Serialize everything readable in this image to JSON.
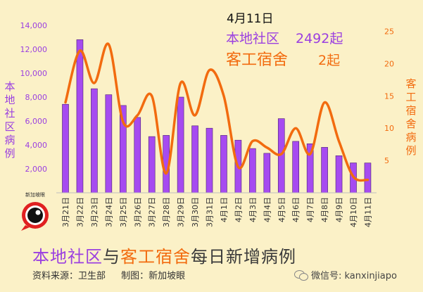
{
  "chart_data": {
    "type": "bar",
    "title": "4月11日",
    "summary": {
      "community_label": "本地社区",
      "community_value": "2492起",
      "dorm_label": "客工宿舍",
      "dorm_value": "2起"
    },
    "left_axis_label": "本地社区病例",
    "right_axis_label": "客工宿舍病例",
    "left_ylim": [
      0,
      15000
    ],
    "left_ticks": [
      2000,
      4000,
      6000,
      8000,
      10000,
      12000,
      14000
    ],
    "left_tick_labels": [
      "2,000",
      "4,000",
      "6,000",
      "8,000",
      "10,000",
      "12,000",
      "14,000"
    ],
    "right_ylim": [
      0,
      26
    ],
    "right_ticks": [
      5,
      10,
      15,
      20,
      25
    ],
    "right_tick_labels": [
      "5",
      "10",
      "15",
      "20",
      "25"
    ],
    "categories": [
      "3月21日",
      "3月22日",
      "3月23日",
      "3月24日",
      "3月25日",
      "3月26日",
      "3月27日",
      "3月28日",
      "3月29日",
      "3月30日",
      "3月31日",
      "4月1日",
      "4月2日",
      "4月3日",
      "4月4日",
      "4月5日",
      "4月6日",
      "4月7日",
      "4月8日",
      "4月9日",
      "4月10日",
      "4月11日"
    ],
    "series": [
      {
        "type": "bar",
        "color": "#a64bf0",
        "values": [
          7400,
          12800,
          8700,
          8200,
          7300,
          6300,
          4700,
          4800,
          8000,
          5600,
          5400,
          4800,
          4400,
          3700,
          3300,
          6200,
          4300,
          4100,
          3800,
          3100,
          2500,
          2492
        ]
      },
      {
        "type": "line",
        "color": "#f26b0f",
        "values": [
          14,
          22,
          17,
          23,
          11,
          12,
          15,
          3,
          17,
          12,
          19,
          15,
          4,
          8,
          7,
          6,
          10,
          6,
          14,
          8,
          2.5,
          2
        ]
      }
    ],
    "footer": {
      "title_part1": "本地社区",
      "title_part2": "与",
      "title_part3": "客工宿舍",
      "title_part4": "每日新增病例",
      "source": "资料来源：卫生部",
      "maker": "制图：新加坡眼",
      "wechat": "微信号: kanxinjiapo"
    },
    "logo_text": "新加坡眼",
    "colors": {
      "bar": "#a64bf0",
      "line": "#f26b0f",
      "community_text": "#9b40e0",
      "dorm_text": "#f26b0f",
      "background": "#fbf1c7"
    }
  }
}
